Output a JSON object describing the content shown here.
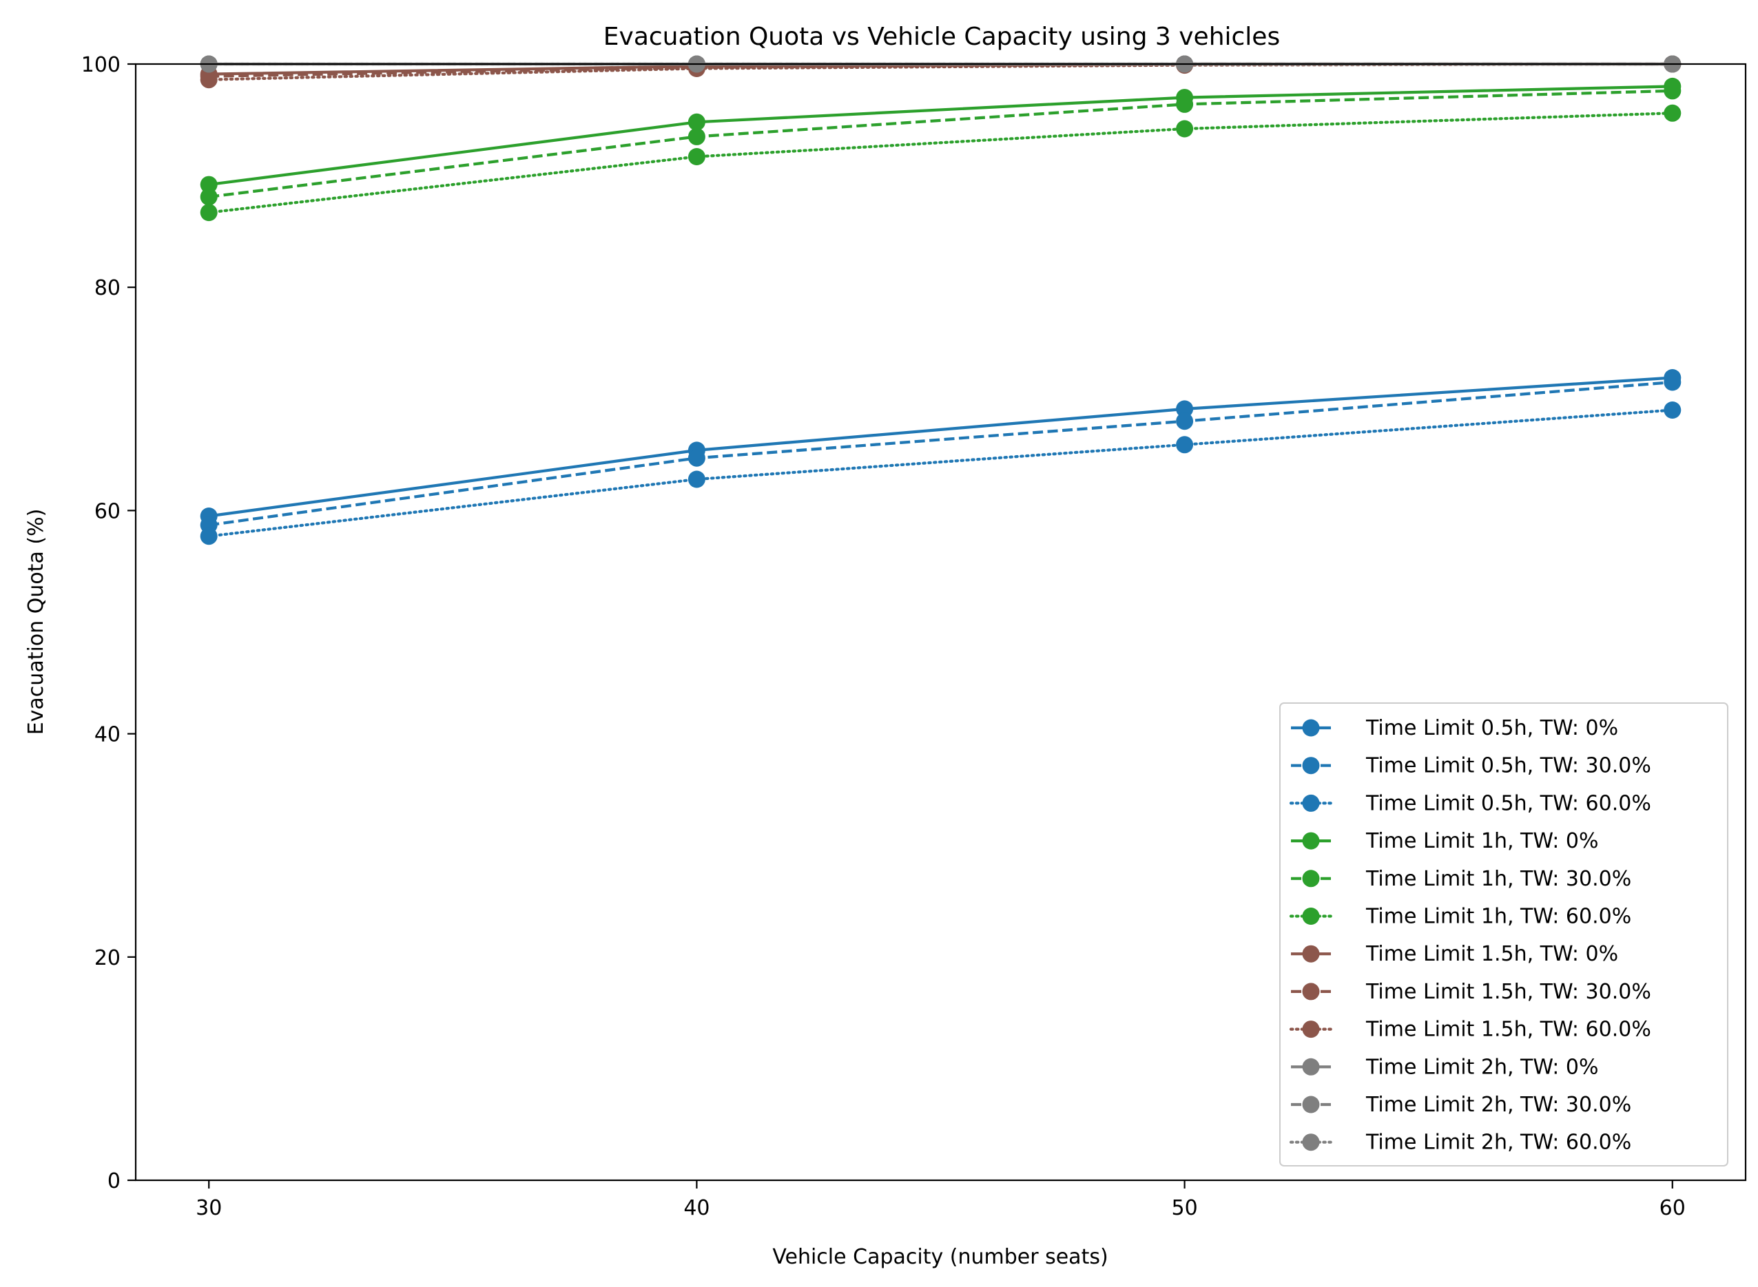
{
  "chart_data": {
    "type": "line",
    "title": "Evacuation Quota vs Vehicle Capacity using 3 vehicles",
    "xlabel": "Vehicle Capacity (number seats)",
    "ylabel": "Evacuation Quota (%)",
    "x": [
      30,
      40,
      50,
      60
    ],
    "xlim": [
      28.5,
      61.5
    ],
    "ylim": [
      0,
      100
    ],
    "xticks": [
      30,
      40,
      50,
      60
    ],
    "yticks": [
      0,
      20,
      40,
      60,
      80,
      100
    ],
    "grid": false,
    "legend_position": "lower-right",
    "colors": {
      "blue": "#1f77b4",
      "green": "#2ca02c",
      "brown": "#8c564b",
      "gray": "#7f7f7f"
    },
    "series": [
      {
        "name": "Time Limit 0.5h, TW: 0%",
        "color": "#1f77b4",
        "style": "solid",
        "values": [
          59.5,
          65.4,
          69.1,
          71.9
        ]
      },
      {
        "name": "Time Limit 0.5h, TW: 30.0%",
        "color": "#1f77b4",
        "style": "dashed",
        "values": [
          58.7,
          64.7,
          68.0,
          71.5
        ]
      },
      {
        "name": "Time Limit 0.5h, TW: 60.0%",
        "color": "#1f77b4",
        "style": "dotted",
        "values": [
          57.7,
          62.8,
          65.9,
          69.0
        ]
      },
      {
        "name": "Time Limit 1h, TW: 0%",
        "color": "#2ca02c",
        "style": "solid",
        "values": [
          89.2,
          94.8,
          97.0,
          98.0
        ]
      },
      {
        "name": "Time Limit 1h, TW: 30.0%",
        "color": "#2ca02c",
        "style": "dashed",
        "values": [
          88.1,
          93.5,
          96.4,
          97.6
        ]
      },
      {
        "name": "Time Limit 1h, TW: 60.0%",
        "color": "#2ca02c",
        "style": "dotted",
        "values": [
          86.7,
          91.7,
          94.2,
          95.6
        ]
      },
      {
        "name": "Time Limit 1.5h, TW: 0%",
        "color": "#8c564b",
        "style": "solid",
        "values": [
          99.1,
          99.8,
          100.0,
          100.0
        ]
      },
      {
        "name": "Time Limit 1.5h, TW: 30.0%",
        "color": "#8c564b",
        "style": "dashed",
        "values": [
          98.9,
          99.7,
          100.0,
          100.0
        ]
      },
      {
        "name": "Time Limit 1.5h, TW: 60.0%",
        "color": "#8c564b",
        "style": "dotted",
        "values": [
          98.6,
          99.6,
          99.9,
          100.0
        ]
      },
      {
        "name": "Time Limit 2h, TW: 0%",
        "color": "#7f7f7f",
        "style": "solid",
        "values": [
          100.0,
          100.0,
          100.0,
          100.0
        ]
      },
      {
        "name": "Time Limit 2h, TW: 30.0%",
        "color": "#7f7f7f",
        "style": "dashed",
        "values": [
          100.0,
          100.0,
          100.0,
          100.0
        ]
      },
      {
        "name": "Time Limit 2h, TW: 60.0%",
        "color": "#7f7f7f",
        "style": "dotted",
        "values": [
          100.0,
          100.0,
          100.0,
          100.0
        ]
      }
    ]
  }
}
